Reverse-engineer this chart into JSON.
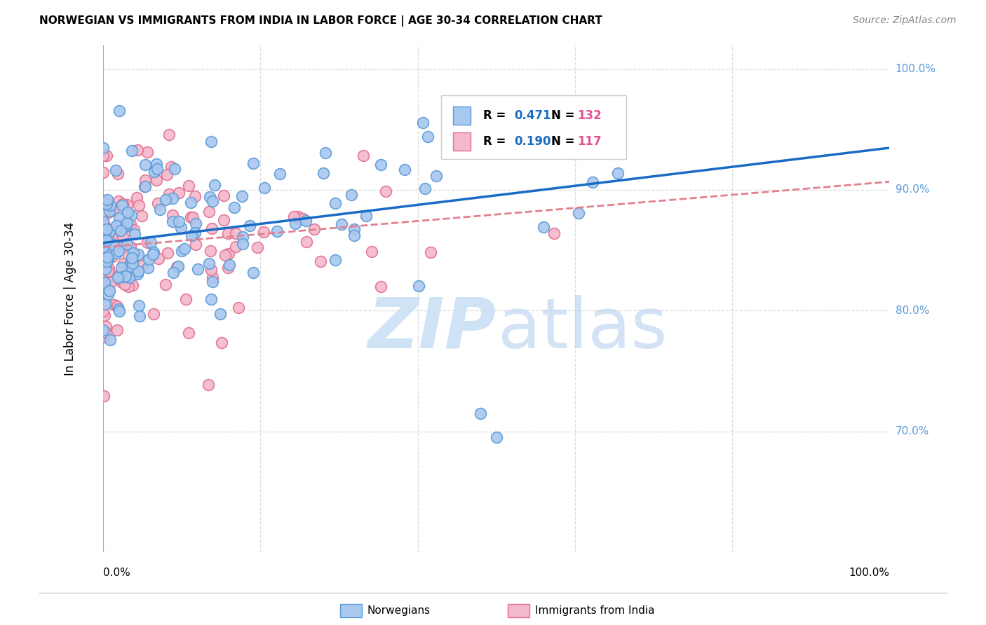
{
  "title": "NORWEGIAN VS IMMIGRANTS FROM INDIA IN LABOR FORCE | AGE 30-34 CORRELATION CHART",
  "source": "Source: ZipAtlas.com",
  "ylabel": "In Labor Force | Age 30-34",
  "xlim": [
    0.0,
    1.0
  ],
  "ylim": [
    0.6,
    1.02
  ],
  "R_norwegian": 0.471,
  "N_norwegian": 132,
  "R_immigrant": 0.19,
  "N_immigrant": 117,
  "norwegian_fill": "#a8c8f0",
  "norwegian_edge": "#5b9bd5",
  "immigrant_fill": "#f4b8cc",
  "immigrant_edge": "#e07090",
  "norwegian_line_color": "#1a6bc4",
  "immigrant_line_color": "#e08090",
  "watermark_zip_color": "#c8dff5",
  "watermark_atlas_color": "#b0ccee",
  "tick_color": "#5b9bd5",
  "background_color": "#ffffff",
  "grid_color": "#dddddd",
  "title_fontsize": 11,
  "source_fontsize": 10,
  "legend_r_color": "#1a6bc4",
  "legend_n_color": "#e05090"
}
